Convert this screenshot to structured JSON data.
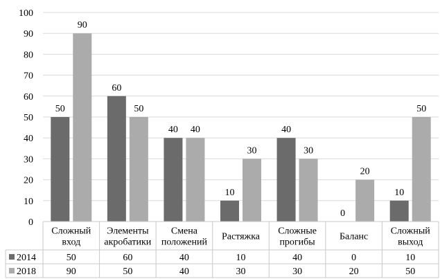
{
  "chart_data": {
    "type": "bar",
    "categories": [
      [
        "Сложный",
        "вход"
      ],
      [
        "Элементы",
        "акробатики"
      ],
      [
        "Смена",
        "положений"
      ],
      [
        "Растяжка"
      ],
      [
        "Сложные",
        "прогибы"
      ],
      [
        "Баланс"
      ],
      [
        "Сложный",
        "выход"
      ]
    ],
    "series": [
      {
        "name": "2014",
        "values": [
          50,
          60,
          40,
          10,
          40,
          0,
          10
        ],
        "color": "#6b6b6b"
      },
      {
        "name": "2018",
        "values": [
          90,
          50,
          40,
          30,
          30,
          20,
          50
        ],
        "color": "#ababab"
      }
    ],
    "ylim": [
      0,
      100
    ],
    "yticks": [
      0,
      10,
      20,
      30,
      40,
      50,
      60,
      70,
      80,
      90,
      100
    ],
    "grid": true,
    "legend": "data-table",
    "data_labels": true
  }
}
